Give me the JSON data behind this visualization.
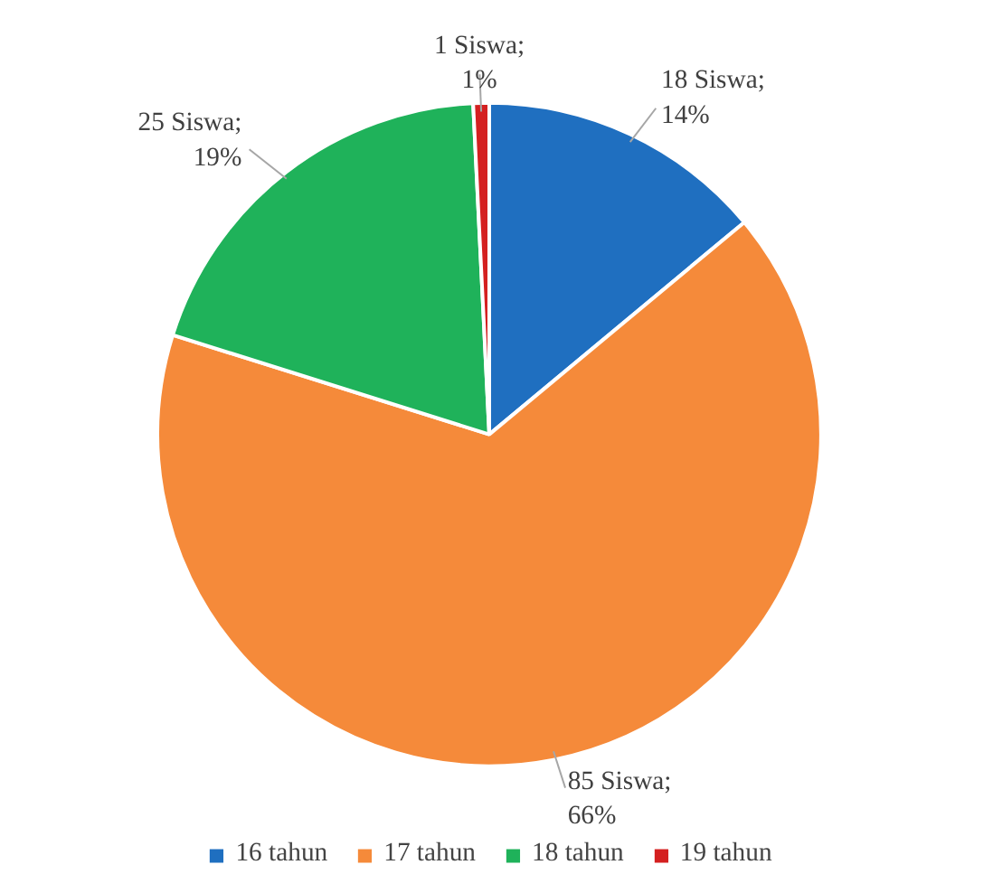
{
  "chart_data": {
    "type": "pie",
    "categories": [
      "16 tahun",
      "17 tahun",
      "18 tahun",
      "19 tahun"
    ],
    "values": [
      18,
      85,
      25,
      1
    ],
    "colors": [
      "#1f6fc0",
      "#f58a3a",
      "#1fb25a",
      "#d42020"
    ],
    "value_labels": [
      "18 Siswa;\n14%",
      "85 Siswa;\n66%",
      "25 Siswa;\n19%",
      "1 Siswa;\n1%"
    ],
    "legend": "bottom"
  }
}
